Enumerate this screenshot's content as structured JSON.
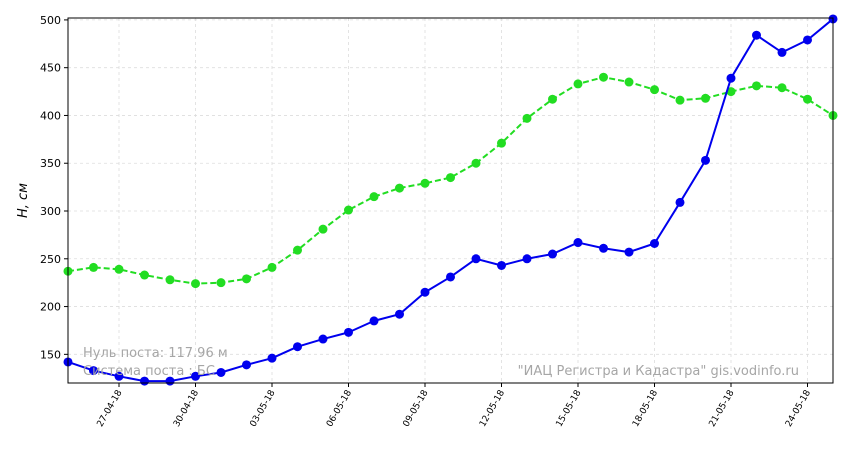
{
  "chart_data": {
    "type": "line",
    "ylabel": "H, см",
    "ylim": [
      120,
      502
    ],
    "yticks": [
      150,
      200,
      250,
      300,
      350,
      400,
      450,
      500
    ],
    "xtick_labels": [
      "27-04-18",
      "30-04-18",
      "03-05-18",
      "06-05-18",
      "09-05-18",
      "12-05-18",
      "15-05-18",
      "18-05-18",
      "21-05-18",
      "24-05-18"
    ],
    "xtick_index": [
      2,
      5,
      8,
      11,
      14,
      17,
      20,
      23,
      26,
      29
    ],
    "x_count": 31,
    "grid": true,
    "series": [
      {
        "color": "#0000ee",
        "style": "solid",
        "values": [
          142,
          133,
          127,
          122,
          122,
          127,
          131,
          139,
          146,
          158,
          166,
          173,
          185,
          192,
          215,
          231,
          250,
          243,
          250,
          255,
          267,
          261,
          257,
          266,
          309,
          353,
          439,
          484,
          466,
          479,
          501
        ]
      },
      {
        "color": "#22dd22",
        "style": "dashed",
        "values": [
          237,
          241,
          239,
          233,
          228,
          224,
          225,
          229,
          241,
          259,
          281,
          301,
          315,
          324,
          329,
          335,
          350,
          371,
          397,
          417,
          433,
          440,
          435,
          427,
          416,
          418,
          425,
          431,
          429,
          417,
          400
        ]
      }
    ],
    "annotations": {
      "zero_post": "Нуль поста: 117.96 м",
      "system": "Система поста : БС",
      "source": "\"ИАЦ Регистра и Кадастра\"   gis.vodinfo.ru"
    }
  }
}
